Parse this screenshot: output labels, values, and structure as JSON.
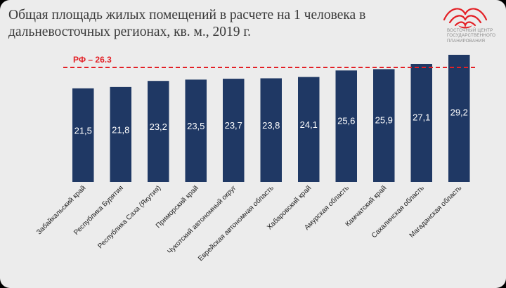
{
  "header": {
    "title_line1": "Общая площадь жилых помещений в расчете на 1 человека в",
    "title_line2": "дальневосточных регионах, кв. м., 2019 г."
  },
  "logo": {
    "icon": "lotus-flower-logo-icon",
    "line1": "ВОСТОЧНЫЙ ЦЕНТР",
    "line2": "ГОСУДАРСТВЕННОГО",
    "line3": "ПЛАНИРОВАНИЯ",
    "color": "#e32026"
  },
  "chart_data": {
    "type": "bar",
    "categories": [
      "Забайкальский край",
      "Республика Бурятия",
      "Республика Саха (Якутия)",
      "Приморский край",
      "Чукотский автономный округ",
      "Еврейская автономная область",
      "Хабаровский край",
      "Амурская область",
      "Камчатский край",
      "Сахалинская область",
      "Магаданская область"
    ],
    "values": [
      21.5,
      21.8,
      23.2,
      23.5,
      23.7,
      23.8,
      24.1,
      25.6,
      25.9,
      27.1,
      29.2
    ],
    "value_labels": [
      "21,5",
      "21,8",
      "23,2",
      "23,5",
      "23,7",
      "23,8",
      "24,1",
      "25,6",
      "25,9",
      "27,1",
      "29,2"
    ],
    "reference_line": {
      "label": "РФ – 26.3",
      "value": 26.3,
      "color": "#e32026",
      "style": "dashed"
    },
    "bar_color": "#1f3864",
    "ylim": [
      0,
      29.2
    ],
    "title": "",
    "xlabel": "",
    "ylabel": "",
    "grid": false,
    "legend": "none"
  }
}
